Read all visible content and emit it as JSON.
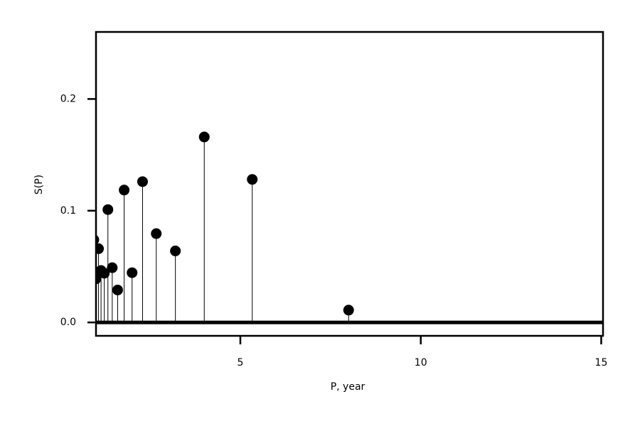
{
  "chart_data": {
    "type": "stem",
    "xlabel": "P, year",
    "ylabel": "S(P)",
    "x": [
      0.94,
      1.0,
      1.07,
      1.14,
      1.23,
      1.33,
      1.45,
      1.6,
      1.78,
      2.0,
      2.29,
      2.67,
      3.2,
      4.0,
      5.33,
      8.0
    ],
    "values": [
      0.074,
      0.039,
      0.066,
      0.0465,
      0.044,
      0.101,
      0.049,
      0.029,
      0.1185,
      0.0445,
      0.126,
      0.0795,
      0.064,
      0.166,
      0.128,
      0.011
    ],
    "color": "#000000",
    "xlim": [
      1.0,
      15.05
    ],
    "ylim": [
      -0.012,
      0.26
    ],
    "xticks": [
      5,
      10,
      15
    ],
    "yticks": [
      {
        "value": 0,
        "label": "0.0"
      },
      0.1,
      0.2
    ]
  }
}
